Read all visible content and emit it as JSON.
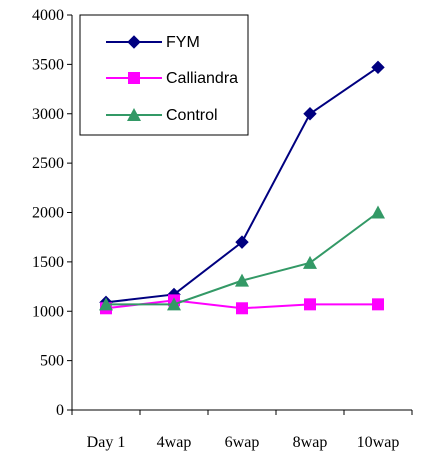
{
  "chart_data": {
    "type": "line",
    "categories": [
      "Day 1",
      "4wap",
      "6wap",
      "8wap",
      "10wap"
    ],
    "ylim": [
      0,
      4000
    ],
    "yticks": [
      0,
      500,
      1000,
      1500,
      2000,
      2500,
      3000,
      3500,
      4000
    ],
    "grid": false,
    "legend_position": "top-left",
    "series": [
      {
        "name": "FYM",
        "values": [
          1090,
          1170,
          1700,
          3000,
          3470
        ],
        "color": "#000080",
        "marker": "diamond"
      },
      {
        "name": "Calliandra",
        "values": [
          1030,
          1110,
          1030,
          1070,
          1070
        ],
        "color": "#FF00FF",
        "marker": "square"
      },
      {
        "name": "Control",
        "values": [
          1070,
          1070,
          1310,
          1490,
          2000
        ],
        "color": "#339966",
        "marker": "triangle"
      }
    ]
  }
}
